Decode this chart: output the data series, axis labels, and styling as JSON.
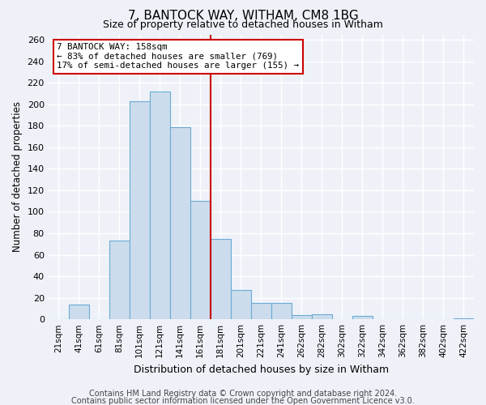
{
  "title": "7, BANTOCK WAY, WITHAM, CM8 1BG",
  "subtitle": "Size of property relative to detached houses in Witham",
  "xlabel": "Distribution of detached houses by size in Witham",
  "ylabel": "Number of detached properties",
  "bin_labels": [
    "21sqm",
    "41sqm",
    "61sqm",
    "81sqm",
    "101sqm",
    "121sqm",
    "141sqm",
    "161sqm",
    "181sqm",
    "201sqm",
    "221sqm",
    "241sqm",
    "262sqm",
    "282sqm",
    "302sqm",
    "322sqm",
    "342sqm",
    "362sqm",
    "382sqm",
    "402sqm",
    "422sqm"
  ],
  "bar_heights": [
    0,
    14,
    0,
    73,
    203,
    212,
    179,
    110,
    75,
    27,
    15,
    15,
    4,
    5,
    0,
    3,
    0,
    0,
    0,
    0,
    1
  ],
  "bar_color": "#ccdcec",
  "bar_edge_color": "#6aaad4",
  "vline_color": "#cc0000",
  "annotation_title": "7 BANTOCK WAY: 158sqm",
  "annotation_line1": "← 83% of detached houses are smaller (769)",
  "annotation_line2": "17% of semi-detached houses are larger (155) →",
  "annotation_box_color": "#ffffff",
  "annotation_box_edge_color": "#cc0000",
  "ylim": [
    0,
    265
  ],
  "yticks": [
    0,
    20,
    40,
    60,
    80,
    100,
    120,
    140,
    160,
    180,
    200,
    220,
    240,
    260
  ],
  "background_color": "#eef2f8",
  "grid_color": "#ffffff",
  "footer_line1": "Contains HM Land Registry data © Crown copyright and database right 2024.",
  "footer_line2": "Contains public sector information licensed under the Open Government Licence v3.0."
}
